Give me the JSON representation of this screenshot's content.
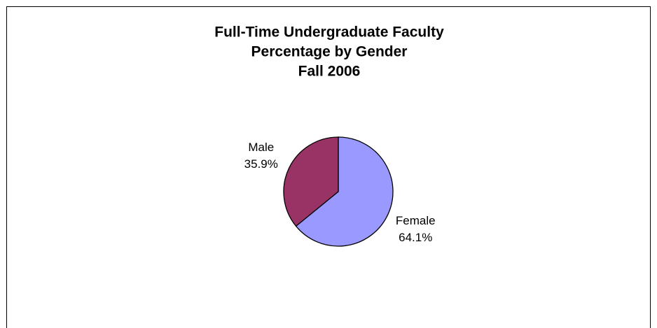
{
  "chart_data": {
    "type": "pie",
    "title": [
      "Full-Time Undergraduate Faculty",
      "Percentage by Gender",
      "Fall 2006"
    ],
    "categories": [
      "Female",
      "Male"
    ],
    "values": [
      64.1,
      35.9
    ],
    "value_labels": [
      "64.1%",
      "35.9%"
    ],
    "colors": [
      "#9999ff",
      "#993366"
    ]
  }
}
